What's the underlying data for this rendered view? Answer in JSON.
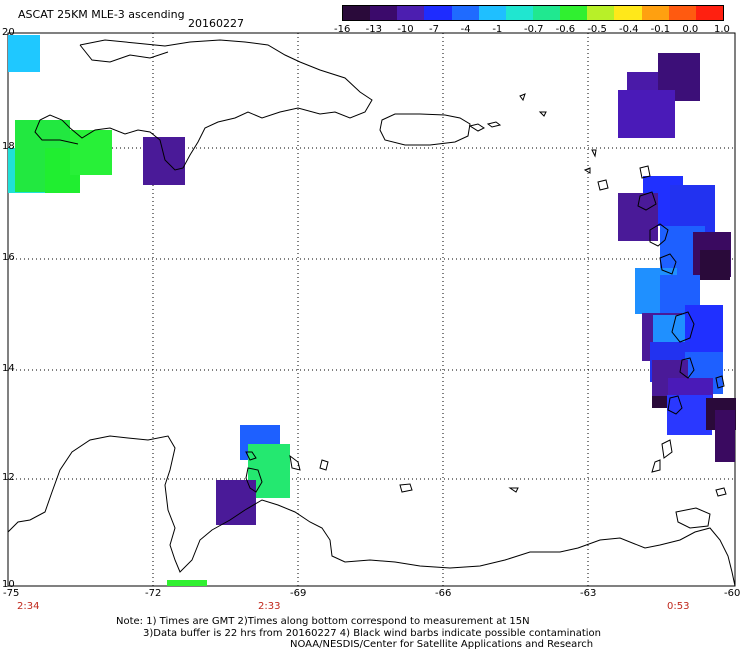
{
  "header": {
    "title": "ASCAT 25KM MLE-3 ascending",
    "date": "20160227"
  },
  "colorbar": {
    "colors": [
      "#2a0a3a",
      "#3b0a6b",
      "#4c1eb0",
      "#1e2cff",
      "#1f6bff",
      "#1fbfff",
      "#20e6d0",
      "#20e890",
      "#30f030",
      "#b8f028",
      "#ffe81a",
      "#ffa010",
      "#ff5a10",
      "#ff2010"
    ],
    "labels": [
      "-16",
      "-13",
      "-10",
      "-7",
      "-4",
      "-1",
      "-0.7",
      "-0.6",
      "-0.5",
      "-0.4",
      "-0.1",
      "0.0",
      "1.0"
    ]
  },
  "axes": {
    "lon_ticks": [
      "-75",
      "-72",
      "-69",
      "-66",
      "-63",
      "-60"
    ],
    "lat_ticks": [
      "20",
      "18",
      "16",
      "14",
      "12",
      "10"
    ]
  },
  "pass_times": [
    "2:34",
    "2:33",
    "0:53"
  ],
  "notes": {
    "line1": "Note: 1) Times are GMT 2)Times along bottom correspond to measurement at 15N",
    "line2": "3)Data buffer is 22 hrs from 20160227 4) Black wind barbs indicate possible contamination",
    "line3": "NOAA/NESDIS/Center for Satellite Applications and Research"
  },
  "legend_colors": {
    "coast": "#000000",
    "grid": "#000000"
  }
}
